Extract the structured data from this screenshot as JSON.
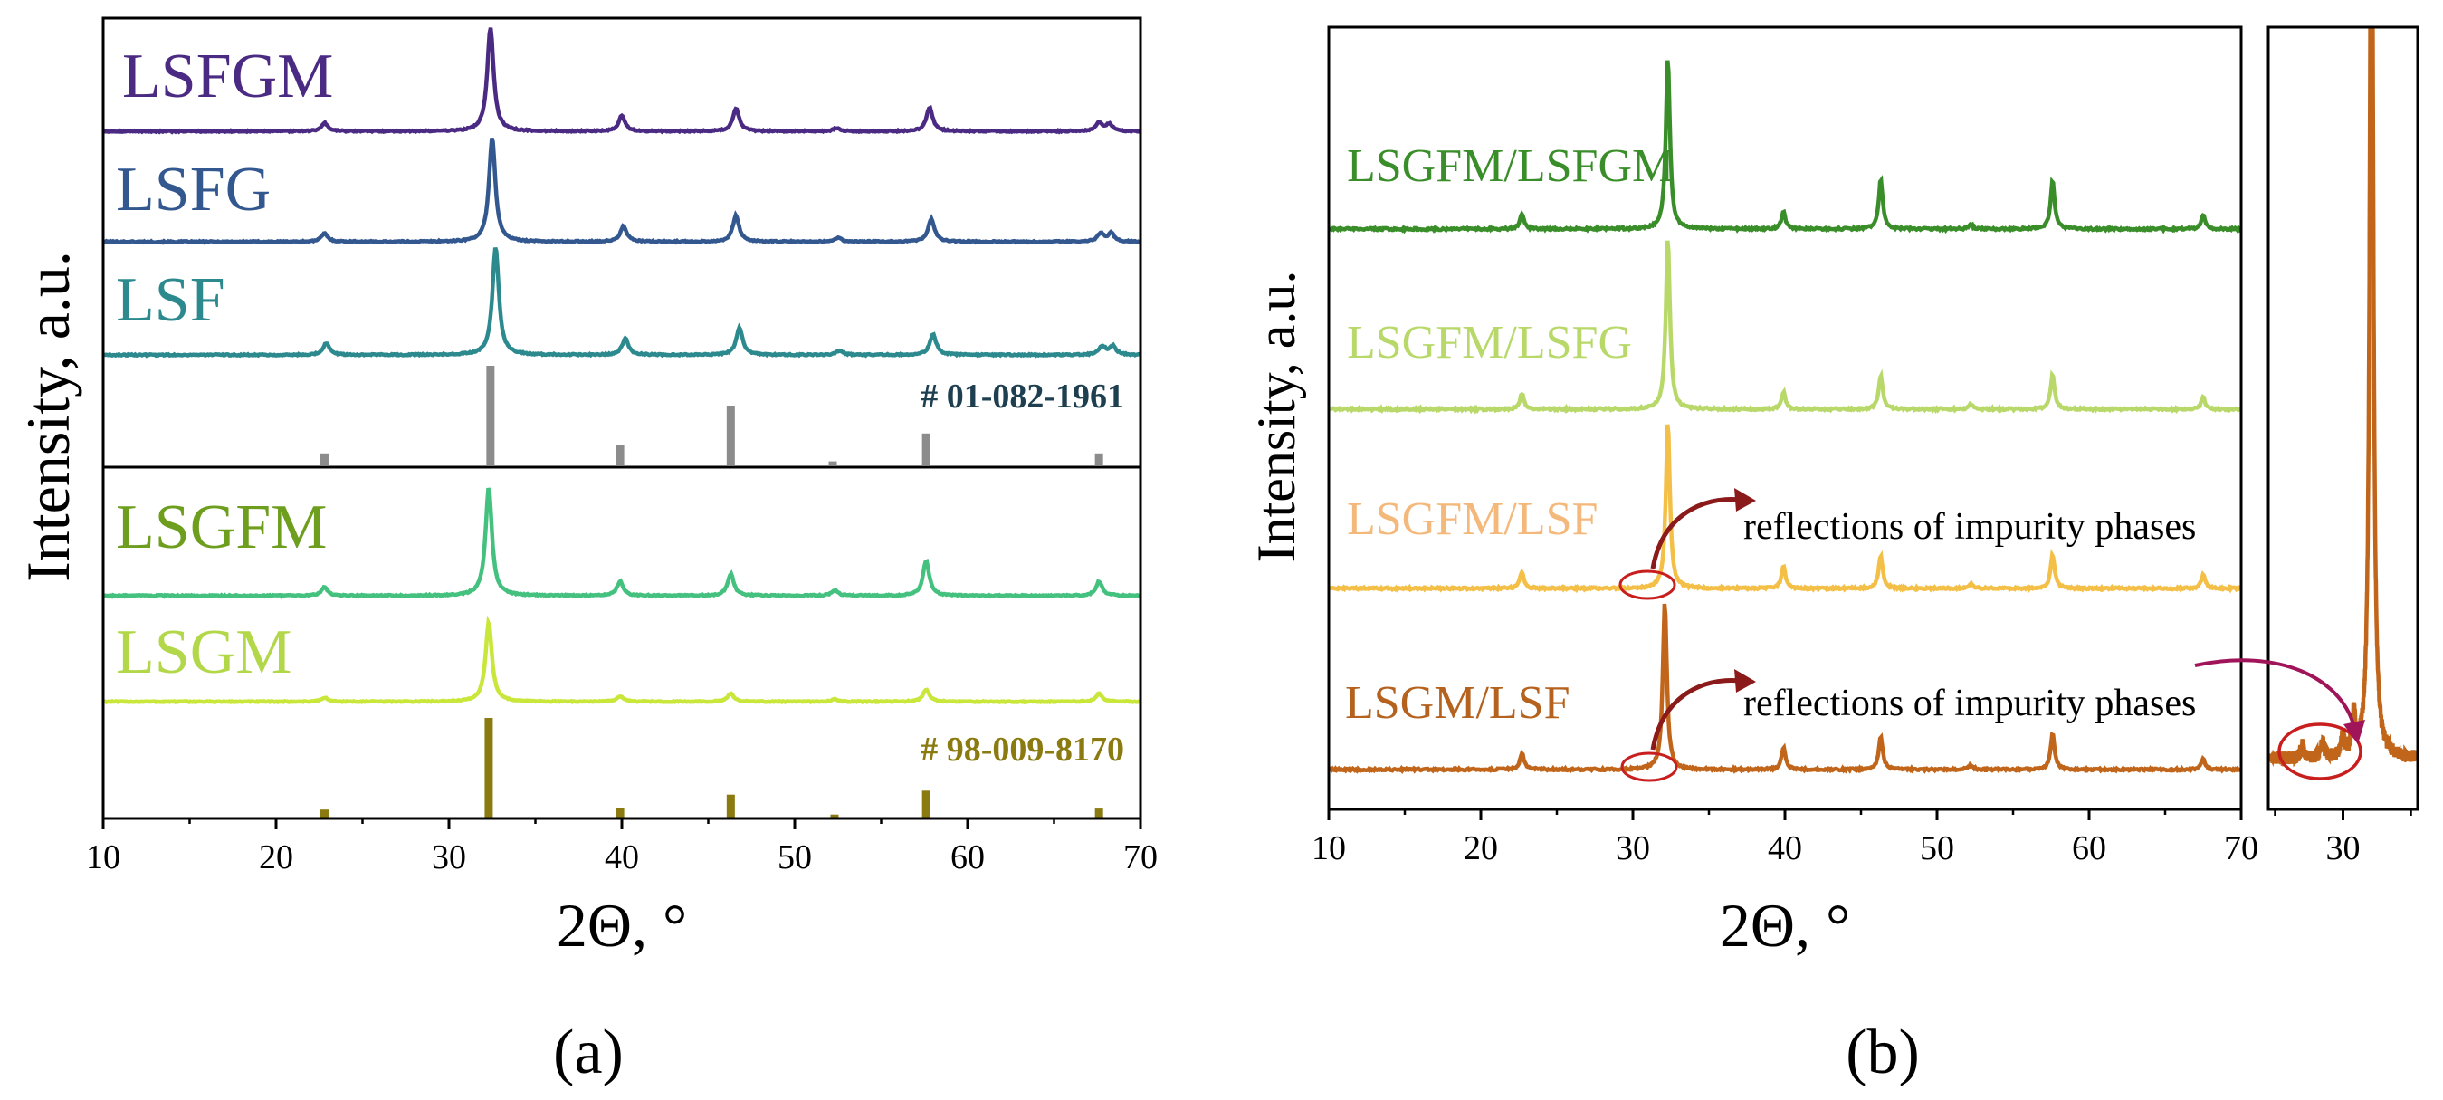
{
  "figure": {
    "caption_a": "(a)",
    "caption_b": "(b)",
    "colors": {
      "axis": "#000000",
      "annotation": "#8b1a1a",
      "arrow_long": "#a0145a"
    }
  },
  "chart_data": [
    {
      "id": "a",
      "type": "line",
      "title": "",
      "xlabel": "2Θ, °",
      "ylabel": "Intensity, a.u.",
      "xlim": [
        10,
        70
      ],
      "xticks": [
        10,
        20,
        30,
        40,
        50,
        60,
        70
      ],
      "grid": false,
      "upper_panel": {
        "series": [
          {
            "name": "LSFGM",
            "color": "#4a2a82",
            "peaks": [
              [
                22.8,
                0.08
              ],
              [
                32.4,
                1.0
              ],
              [
                40.0,
                0.15
              ],
              [
                46.6,
                0.22
              ],
              [
                52.4,
                0.03
              ],
              [
                57.8,
                0.23
              ],
              [
                67.6,
                0.08
              ],
              [
                68.2,
                0.07
              ]
            ]
          },
          {
            "name": "LSFG",
            "color": "#33578f",
            "peaks": [
              [
                22.8,
                0.08
              ],
              [
                32.5,
                1.0
              ],
              [
                40.1,
                0.15
              ],
              [
                46.6,
                0.25
              ],
              [
                52.5,
                0.04
              ],
              [
                57.9,
                0.22
              ],
              [
                67.7,
                0.08
              ],
              [
                68.3,
                0.08
              ]
            ]
          },
          {
            "name": "LSF",
            "color": "#2c8a8e",
            "peaks": [
              [
                22.9,
                0.11
              ],
              [
                32.7,
                1.0
              ],
              [
                40.2,
                0.15
              ],
              [
                46.8,
                0.25
              ],
              [
                52.6,
                0.04
              ],
              [
                58.0,
                0.19
              ],
              [
                67.8,
                0.08
              ],
              [
                68.4,
                0.08
              ]
            ]
          }
        ],
        "reference": {
          "label": "# 01-082-1961",
          "color": "#8c8c8c",
          "label_color": "#1e3f4f",
          "lines": [
            [
              22.8,
              0.12
            ],
            [
              32.4,
              1.0
            ],
            [
              39.9,
              0.2
            ],
            [
              46.3,
              0.6
            ],
            [
              52.2,
              0.04
            ],
            [
              57.6,
              0.32
            ],
            [
              67.6,
              0.12
            ]
          ]
        }
      },
      "lower_panel": {
        "series": [
          {
            "name": "LSGFM",
            "color": "#44c17e",
            "label_color": "#6e9e1e",
            "peaks": [
              [
                22.8,
                0.08
              ],
              [
                32.3,
                1.0
              ],
              [
                39.9,
                0.13
              ],
              [
                46.3,
                0.2
              ],
              [
                52.3,
                0.05
              ],
              [
                57.6,
                0.32
              ],
              [
                67.6,
                0.13
              ]
            ]
          },
          {
            "name": "LSGM",
            "color": "#c9e63a",
            "label_color": "#b2d84a",
            "peaks": [
              [
                22.8,
                0.05
              ],
              [
                32.3,
                1.0
              ],
              [
                39.9,
                0.07
              ],
              [
                46.3,
                0.1
              ],
              [
                52.3,
                0.03
              ],
              [
                57.6,
                0.15
              ],
              [
                67.6,
                0.1
              ]
            ]
          }
        ],
        "reference": {
          "label": "# 98-009-8170",
          "color": "#8a7a10",
          "label_color": "#8a7a10",
          "lines": [
            [
              22.8,
              0.08
            ],
            [
              32.3,
              1.0
            ],
            [
              39.9,
              0.1
            ],
            [
              46.3,
              0.23
            ],
            [
              52.3,
              0.03
            ],
            [
              57.6,
              0.27
            ],
            [
              67.6,
              0.09
            ]
          ]
        }
      }
    },
    {
      "id": "b",
      "type": "line",
      "title": "",
      "xlabel": "2Θ, °",
      "ylabel": "Intensity, a.u.",
      "xlim": [
        10,
        70
      ],
      "xticks": [
        10,
        20,
        30,
        40,
        50,
        60,
        70
      ],
      "grid": false,
      "series": [
        {
          "name": "LSGFM/LSFGM",
          "color": "#3a8e2a",
          "peaks": [
            [
              22.7,
              0.09
            ],
            [
              32.3,
              1.0
            ],
            [
              39.9,
              0.1
            ],
            [
              46.3,
              0.29
            ],
            [
              52.2,
              0.03
            ],
            [
              57.6,
              0.28
            ],
            [
              67.5,
              0.08
            ]
          ]
        },
        {
          "name": "LSGFM/LSFG",
          "color": "#b8d96a",
          "peaks": [
            [
              22.7,
              0.09
            ],
            [
              32.3,
              1.0
            ],
            [
              39.9,
              0.1
            ],
            [
              46.3,
              0.2
            ],
            [
              52.2,
              0.03
            ],
            [
              57.6,
              0.2
            ],
            [
              67.5,
              0.07
            ]
          ]
        },
        {
          "name": "LSGFM/LSF",
          "color": "#f3bf47",
          "label_color": "#f4b87a",
          "peaks": [
            [
              22.7,
              0.1
            ],
            [
              32.3,
              1.0
            ],
            [
              39.9,
              0.13
            ],
            [
              46.3,
              0.2
            ],
            [
              52.2,
              0.03
            ],
            [
              57.6,
              0.2
            ],
            [
              67.5,
              0.08
            ]
          ]
        },
        {
          "name": "LSGM/LSF",
          "color": "#c0651a",
          "label_color": "#b4621e",
          "peaks": [
            [
              22.7,
              0.1
            ],
            [
              32.1,
              1.0
            ],
            [
              39.9,
              0.13
            ],
            [
              46.3,
              0.2
            ],
            [
              52.2,
              0.03
            ],
            [
              57.6,
              0.21
            ],
            [
              67.5,
              0.06
            ]
          ]
        }
      ],
      "annotations": [
        {
          "text": "reflections of impurity phases",
          "series": "LSGFM/LSF",
          "near_x": 31
        },
        {
          "text": "reflections of impurity phases",
          "series": "LSGM/LSF",
          "near_x": 31
        }
      ],
      "inset": {
        "series": "LSGM/LSF",
        "xticks": [
          30
        ],
        "peaks": [
          [
            27.0,
            0.012
          ],
          [
            28.5,
            0.015
          ],
          [
            30.0,
            0.02
          ],
          [
            30.8,
            0.035
          ],
          [
            32.1,
            1.0
          ]
        ]
      }
    }
  ]
}
